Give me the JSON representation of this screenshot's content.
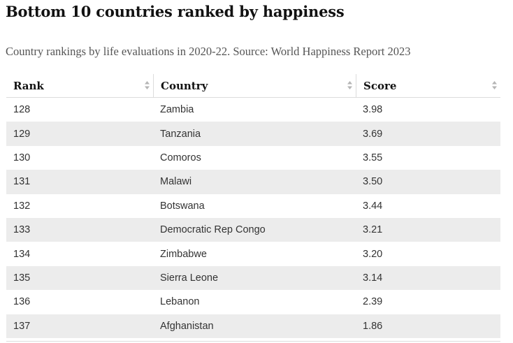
{
  "header": {
    "title": "Bottom 10 countries ranked by happiness",
    "subtitle": "Country rankings by life evaluations in 2020-22. Source: World Happiness Report 2023"
  },
  "table": {
    "columns": [
      "Rank",
      "Country",
      "Score"
    ],
    "rows": [
      [
        "128",
        "Zambia",
        "3.98"
      ],
      [
        "129",
        "Tanzania",
        "3.69"
      ],
      [
        "130",
        "Comoros",
        "3.55"
      ],
      [
        "131",
        "Malawi",
        "3.50"
      ],
      [
        "132",
        "Botswana",
        "3.44"
      ],
      [
        "133",
        "Democratic Rep Congo",
        "3.21"
      ],
      [
        "134",
        "Zimbabwe",
        "3.20"
      ],
      [
        "135",
        "Sierra Leone",
        "3.14"
      ],
      [
        "136",
        "Lebanon",
        "2.39"
      ],
      [
        "137",
        "Afghanistan",
        "1.86"
      ]
    ]
  },
  "colors": {
    "text": "#121212",
    "muted": "#555555",
    "stripe": "#ececec",
    "rule": "#dcdcdc"
  }
}
